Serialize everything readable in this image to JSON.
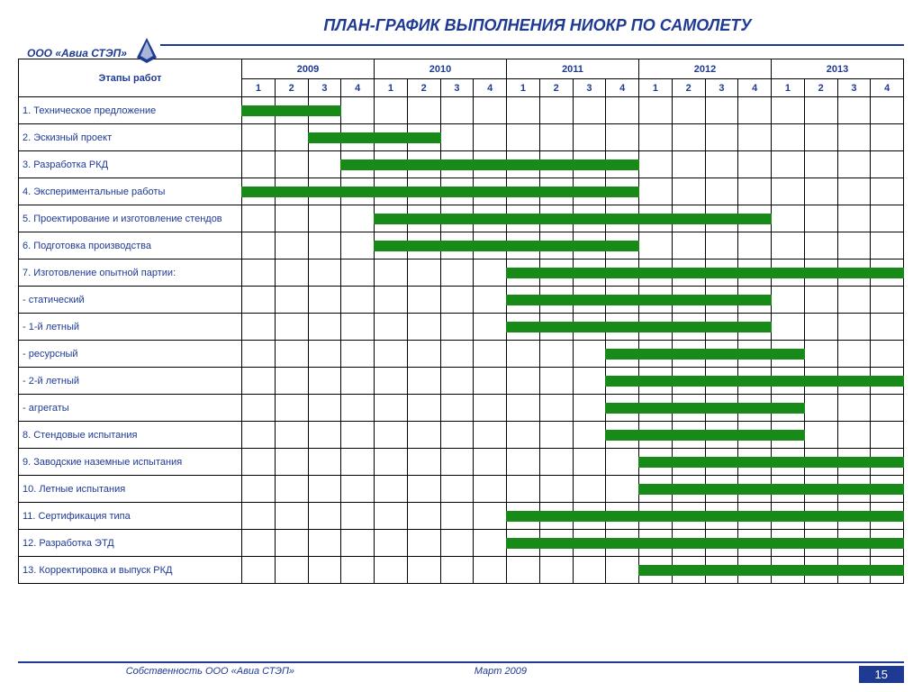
{
  "title": "ПЛАН-ГРАФИК ВЫПОЛНЕНИЯ НИОКР ПО САМОЛЕТУ",
  "company": "ООО «Авиа СТЭП»",
  "stages_header": "Этапы работ",
  "years": [
    "2009",
    "2010",
    "2011",
    "2012",
    "2013"
  ],
  "quarters": [
    "1",
    "2",
    "3",
    "4"
  ],
  "bar_color": "#178a17",
  "title_color": "#1f3a93",
  "rows": [
    {
      "label": "1. Техническое предложение",
      "start": 1,
      "end": 3
    },
    {
      "label": "2. Эскизный проект",
      "start": 3,
      "end": 6
    },
    {
      "label": "3. Разработка РКД",
      "start": 4,
      "end": 12
    },
    {
      "label": "4. Экспериментальные работы",
      "start": 1,
      "end": 12
    },
    {
      "label": "5. Проектирование и изготовление стендов",
      "start": 5,
      "end": 16
    },
    {
      "label": "6. Подготовка производства",
      "start": 5,
      "end": 12
    },
    {
      "label": "7. Изготовление опытной партии:",
      "start": 9,
      "end": 20
    },
    {
      "label": "- статический",
      "start": 9,
      "end": 16
    },
    {
      "label": "- 1-й летный",
      "start": 9,
      "end": 16
    },
    {
      "label": "- ресурсный",
      "start": 12,
      "end": 17
    },
    {
      "label": "- 2-й летный",
      "start": 12,
      "end": 20
    },
    {
      "label": "- агрегаты",
      "start": 12,
      "end": 17
    },
    {
      "label": "8. Стендовые испытания",
      "start": 12,
      "end": 17
    },
    {
      "label": "9. Заводские наземные испытания",
      "start": 13,
      "end": 20
    },
    {
      "label": "10. Летные испытания",
      "start": 13,
      "end": 20
    },
    {
      "label": "11. Сертификация типа",
      "start": 9,
      "end": 20
    },
    {
      "label": "12. Разработка ЭТД",
      "start": 9,
      "end": 20
    },
    {
      "label": "13. Корректировка и выпуск РКД",
      "start": 13,
      "end": 20
    }
  ],
  "footer_owner": "Собственность ООО «Авиа СТЭП»",
  "footer_date": "Март 2009",
  "page_number": "15"
}
